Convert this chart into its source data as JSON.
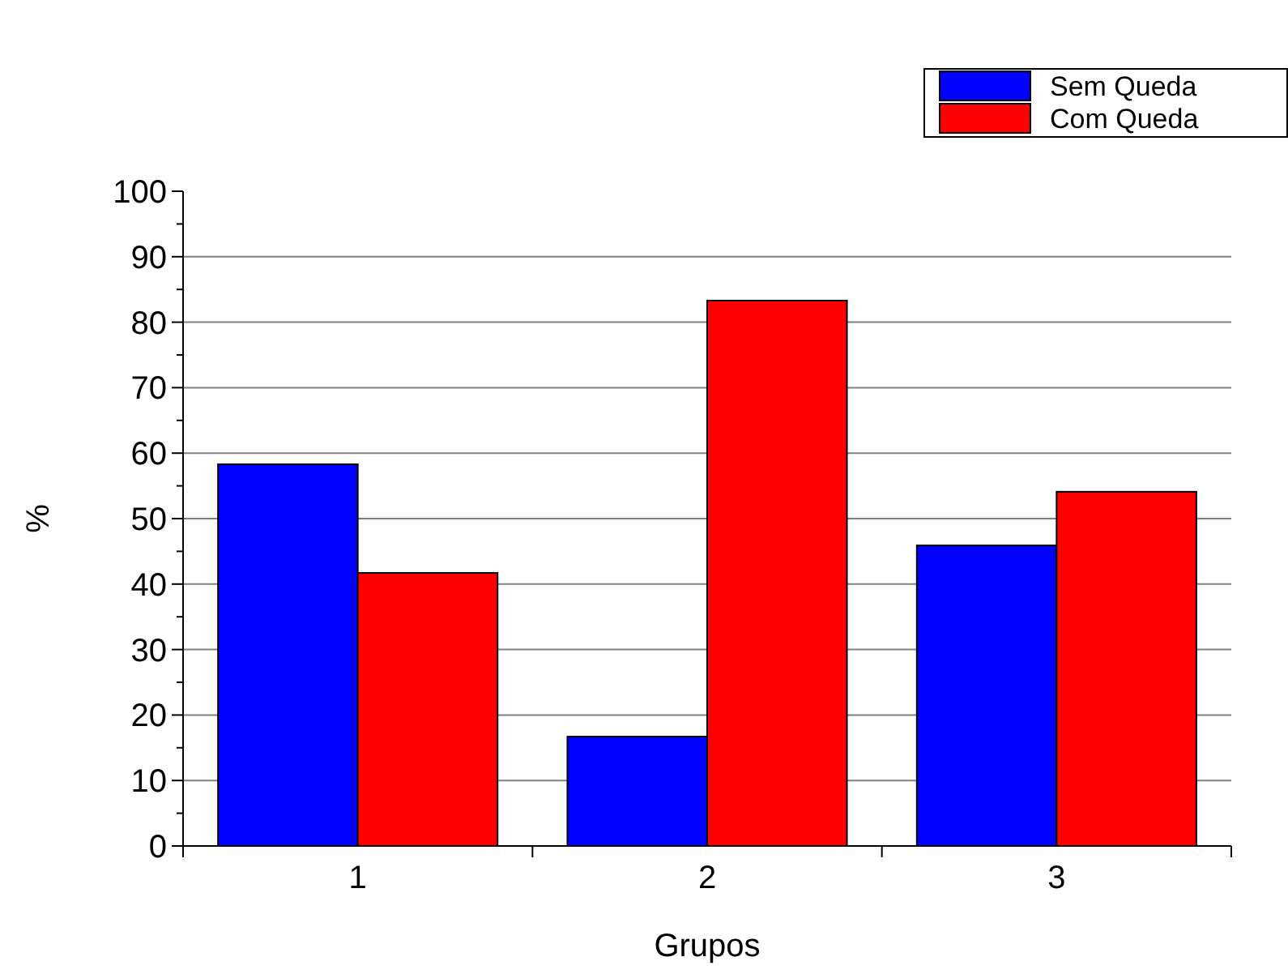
{
  "chart_data": {
    "type": "bar",
    "xlabel": "Grupos",
    "ylabel": "%",
    "categories": [
      "1",
      "2",
      "3"
    ],
    "series": [
      {
        "name": "Sem Queda",
        "color": "#0000ff",
        "values": [
          58.3,
          16.7,
          45.9
        ]
      },
      {
        "name": "Com Queda",
        "color": "#ff0000",
        "values": [
          41.7,
          83.3,
          54.1
        ]
      }
    ],
    "ylim": [
      0,
      100
    ],
    "yticks": [
      0,
      {
        "value": 5,
        "label": null
      },
      10,
      {
        "value": 15,
        "label": null
      },
      20,
      {
        "value": 25,
        "label": null
      },
      30,
      {
        "value": 35,
        "label": null
      },
      40,
      {
        "value": 45,
        "label": null
      },
      50,
      {
        "value": 55,
        "label": null
      },
      60,
      {
        "value": 65,
        "label": null
      },
      70,
      {
        "value": 75,
        "label": null
      },
      80,
      {
        "value": 85,
        "label": null
      },
      90,
      {
        "value": 95,
        "label": null
      },
      100
    ],
    "grid": "y",
    "legend": "top right"
  }
}
